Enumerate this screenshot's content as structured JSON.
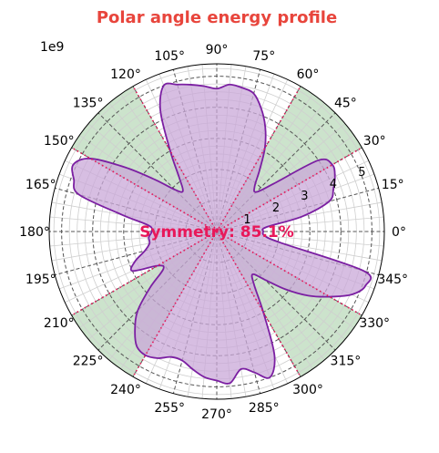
{
  "chart_data": {
    "type": "polar-area",
    "title": "Polar angle energy profile",
    "scale_label": "1e9",
    "annotation": "Symmetry: 85.1%",
    "angle_tick_labels": [
      "0°",
      "15°",
      "30°",
      "45°",
      "60°",
      "75°",
      "90°",
      "105°",
      "120°",
      "135°",
      "150°",
      "165°",
      "180°",
      "195°",
      "210°",
      "225°",
      "240°",
      "255°",
      "270°",
      "285°",
      "300°",
      "315°",
      "330°",
      "345°"
    ],
    "radial_tick_labels": [
      "1",
      "2",
      "3",
      "4",
      "5"
    ],
    "radial_ticks": [
      1,
      2,
      3,
      4,
      5
    ],
    "rlim": [
      0,
      5.4
    ],
    "angle_tick_step_deg": 15,
    "minor_angle_step_deg": 5,
    "minor_radial_step": 0.25,
    "shaded_sectors_deg": [
      [
        30,
        60
      ],
      [
        120,
        150
      ],
      [
        210,
        240
      ],
      [
        300,
        330
      ]
    ],
    "sector_boundaries_deg": [
      30,
      60,
      120,
      150,
      210,
      240,
      300,
      330
    ],
    "series": [
      {
        "name": "",
        "theta_deg": [
          0,
          5,
          10,
          15,
          20,
          25,
          30,
          35,
          40,
          45,
          50,
          55,
          60,
          65,
          70,
          75,
          80,
          85,
          90,
          95,
          100,
          105,
          110,
          115,
          120,
          125,
          130,
          135,
          140,
          145,
          150,
          155,
          160,
          165,
          170,
          175,
          180,
          185,
          190,
          195,
          200,
          205,
          210,
          215,
          220,
          225,
          230,
          235,
          240,
          245,
          250,
          255,
          260,
          265,
          270,
          275,
          280,
          285,
          290,
          295,
          300,
          305,
          310,
          315,
          320,
          325,
          330,
          335,
          340,
          345,
          350,
          355
        ],
        "r": [
          1.5,
          1.6,
          2.8,
          3.75,
          4.0,
          4.2,
          4.3,
          4.0,
          2.4,
          1.8,
          1.9,
          2.4,
          3.1,
          3.7,
          4.2,
          4.6,
          4.7,
          4.75,
          4.6,
          4.7,
          4.8,
          4.9,
          5.0,
          4.3,
          3.0,
          2.1,
          1.7,
          1.9,
          2.6,
          3.6,
          4.7,
          5.1,
          4.9,
          4.6,
          3.1,
          2.2,
          2.1,
          2.2,
          2.2,
          2.4,
          2.8,
          3.0,
          2.2,
          2.1,
          2.8,
          3.6,
          4.1,
          4.5,
          4.6,
          4.5,
          4.3,
          4.3,
          4.5,
          4.7,
          4.8,
          4.9,
          4.5,
          4.7,
          5.0,
          4.4,
          3.0,
          2.1,
          1.8,
          2.2,
          2.9,
          3.6,
          4.2,
          4.8,
          5.1,
          4.9,
          2.1,
          1.55
        ]
      }
    ],
    "colors": {
      "title": "#e8453c",
      "annotation": "#e8185a",
      "series_line": "#7b1fa2",
      "series_fill": "#c9a8d8",
      "sector_fill": "#c6e0c6",
      "sector_line": "#e8185a",
      "major_grid": "#555555",
      "minor_grid": "#cfcfcf"
    }
  }
}
